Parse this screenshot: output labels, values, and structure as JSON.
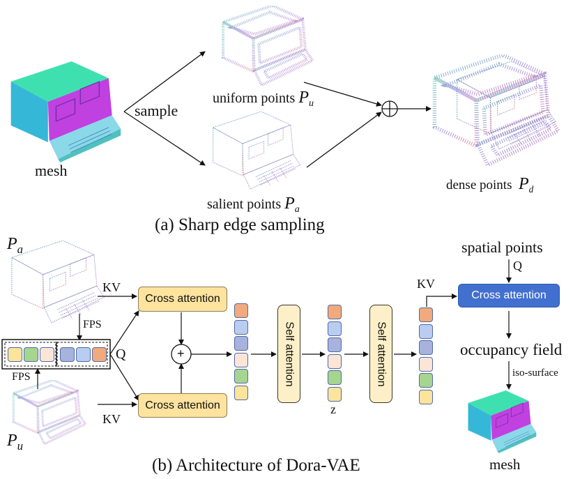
{
  "part_a": {
    "mesh_label": "mesh",
    "sample_label": "sample",
    "uniform_label": "uniform points",
    "uniform_symbol": "P",
    "uniform_sub": "u",
    "salient_label": "salient points",
    "salient_symbol": "P",
    "salient_sub": "a",
    "dense_label": "dense points",
    "dense_symbol": "P",
    "dense_sub": "d",
    "caption": "(a) Sharp edge sampling"
  },
  "part_b": {
    "pa_symbol": "P",
    "pa_sub": "a",
    "pu_symbol": "P",
    "pu_sub": "u",
    "kv_top": "KV",
    "kv_bottom": "KV",
    "kv_decoder": "KV",
    "fps_top": "FPS",
    "fps_bottom": "FPS",
    "q_label": "Q",
    "cross_attention_top": "Cross attention",
    "cross_attention_bottom": "Cross attention",
    "plus": "+",
    "self_attention_1": "Self attention",
    "self_attention_2": "Self attention",
    "z_label": "z",
    "spatial_points": "spatial points",
    "q_decoder": "Q",
    "cross_attention_decoder": "Cross attention",
    "occupancy_field": "occupancy field",
    "iso_surface": "iso-surface",
    "mesh_label": "mesh",
    "caption": "(b) Architecture of Dora-VAE"
  },
  "colors": {
    "token_orange": "#f2aa7c",
    "token_lightblue": "#b9cdf0",
    "token_darkblue": "#a7b3dc",
    "token_peach": "#fce5d6",
    "token_green": "#a6d58f",
    "token_yellow": "#fde49c",
    "cross_attention": "#fde39e",
    "self_attention": "#fdf0c8",
    "decoder_cross_attention": "#4270cf"
  }
}
